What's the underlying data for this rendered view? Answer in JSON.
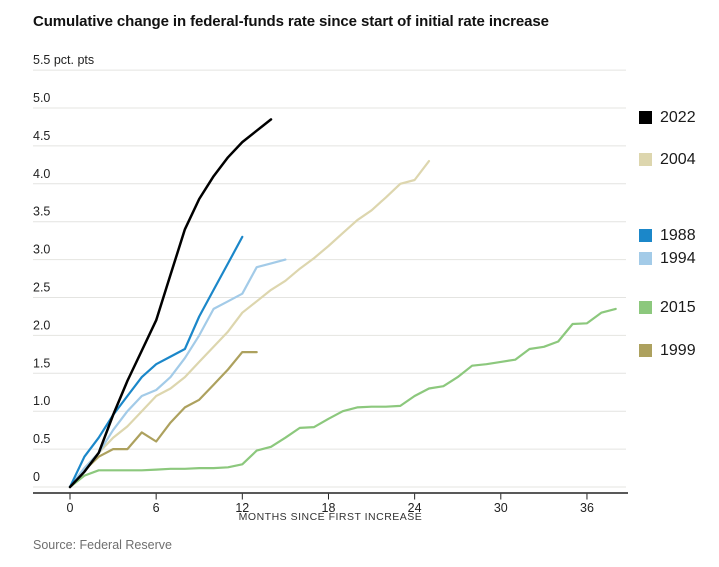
{
  "header": {
    "title": "Cumulative change in federal-funds rate since start of initial rate increase"
  },
  "chart_data": {
    "type": "line",
    "title": "Cumulative change in federal-funds rate since start of initial rate increase",
    "xlabel": "MONTHS SINCE FIRST INCREASE",
    "ylabel": "pct. pts",
    "ytick_top_label": "5.5 pct. pts",
    "xlim": [
      0,
      38.5
    ],
    "ylim": [
      0,
      5.5
    ],
    "xticks": [
      0,
      6,
      12,
      18,
      24,
      30,
      36
    ],
    "yticks": [
      0,
      0.5,
      1,
      1.5,
      2,
      2.5,
      3,
      3.5,
      4,
      4.5,
      5,
      5.5
    ],
    "grid": true,
    "legend_position": "right",
    "x_unit": "months since first increase",
    "colors": {
      "grid": "#e4e4e1",
      "axis": "#222222",
      "tick_text": "#222222"
    },
    "series": [
      {
        "name": "2015",
        "color": "#8cc87d",
        "values": [
          0,
          0.15,
          0.22,
          0.22,
          0.22,
          0.22,
          0.23,
          0.24,
          0.24,
          0.25,
          0.25,
          0.26,
          0.3,
          0.48,
          0.53,
          0.65,
          0.78,
          0.79,
          0.9,
          1.0,
          1.05,
          1.06,
          1.06,
          1.07,
          1.2,
          1.3,
          1.33,
          1.45,
          1.6,
          1.62,
          1.65,
          1.68,
          1.82,
          1.85,
          1.92,
          2.15,
          2.16,
          2.3,
          2.35
        ]
      },
      {
        "name": "1999",
        "color": "#ada15e",
        "values": [
          0,
          0.22,
          0.4,
          0.5,
          0.5,
          0.72,
          0.6,
          0.85,
          1.05,
          1.15,
          1.35,
          1.55,
          1.78,
          1.78
        ]
      },
      {
        "name": "2004",
        "color": "#ddd6ae",
        "values": [
          0,
          0.25,
          0.45,
          0.65,
          0.8,
          1.0,
          1.2,
          1.3,
          1.45,
          1.65,
          1.85,
          2.05,
          2.3,
          2.45,
          2.6,
          2.72,
          2.88,
          3.02,
          3.18,
          3.35,
          3.52,
          3.65,
          3.82,
          4.0,
          4.05,
          4.3
        ]
      },
      {
        "name": "1994",
        "color": "#a3cbe8",
        "values": [
          0,
          0.25,
          0.45,
          0.75,
          1.0,
          1.2,
          1.28,
          1.45,
          1.7,
          2.0,
          2.35,
          2.45,
          2.55,
          2.9,
          2.95,
          3.0
        ]
      },
      {
        "name": "1988",
        "color": "#1b87c9",
        "values": [
          0,
          0.4,
          0.65,
          0.95,
          1.2,
          1.45,
          1.62,
          1.72,
          1.82,
          2.25,
          2.6,
          2.95,
          3.3
        ]
      },
      {
        "name": "2022",
        "color": "#000000",
        "values": [
          0,
          0.2,
          0.45,
          0.95,
          1.4,
          1.8,
          2.2,
          2.8,
          3.4,
          3.8,
          4.1,
          4.35,
          4.55,
          4.7,
          4.85
        ]
      }
    ]
  },
  "source": {
    "text": "Source: Federal Reserve"
  }
}
